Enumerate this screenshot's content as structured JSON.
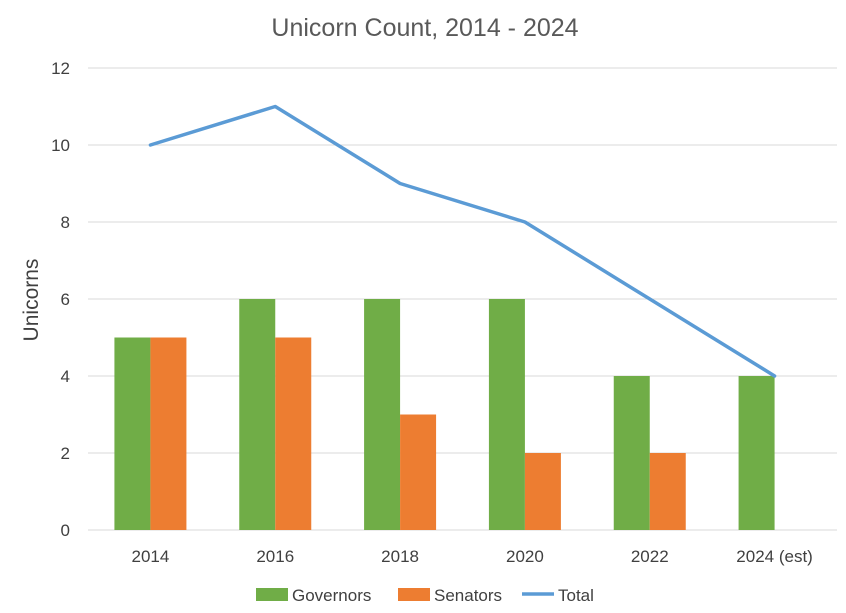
{
  "chart_data": {
    "type": "bar",
    "title": "Unicorn Count, 2014 - 2024",
    "xlabel": "",
    "ylabel": "Unicorns",
    "categories": [
      "2014",
      "2016",
      "2018",
      "2020",
      "2022",
      "2024 (est)"
    ],
    "series": [
      {
        "name": "Governors",
        "type": "bar",
        "color": "#70ad47",
        "values": [
          5,
          6,
          6,
          6,
          4,
          4
        ]
      },
      {
        "name": "Senators",
        "type": "bar",
        "color": "#ed7d31",
        "values": [
          5,
          5,
          3,
          2,
          2,
          0
        ]
      },
      {
        "name": "Total",
        "type": "line",
        "color": "#5b9bd5",
        "values": [
          10,
          11,
          9,
          8,
          6,
          4
        ]
      }
    ],
    "ylim": [
      0,
      12
    ],
    "yticks": [
      0,
      2,
      4,
      6,
      8,
      10,
      12
    ],
    "grid": true,
    "legend_position": "bottom"
  }
}
